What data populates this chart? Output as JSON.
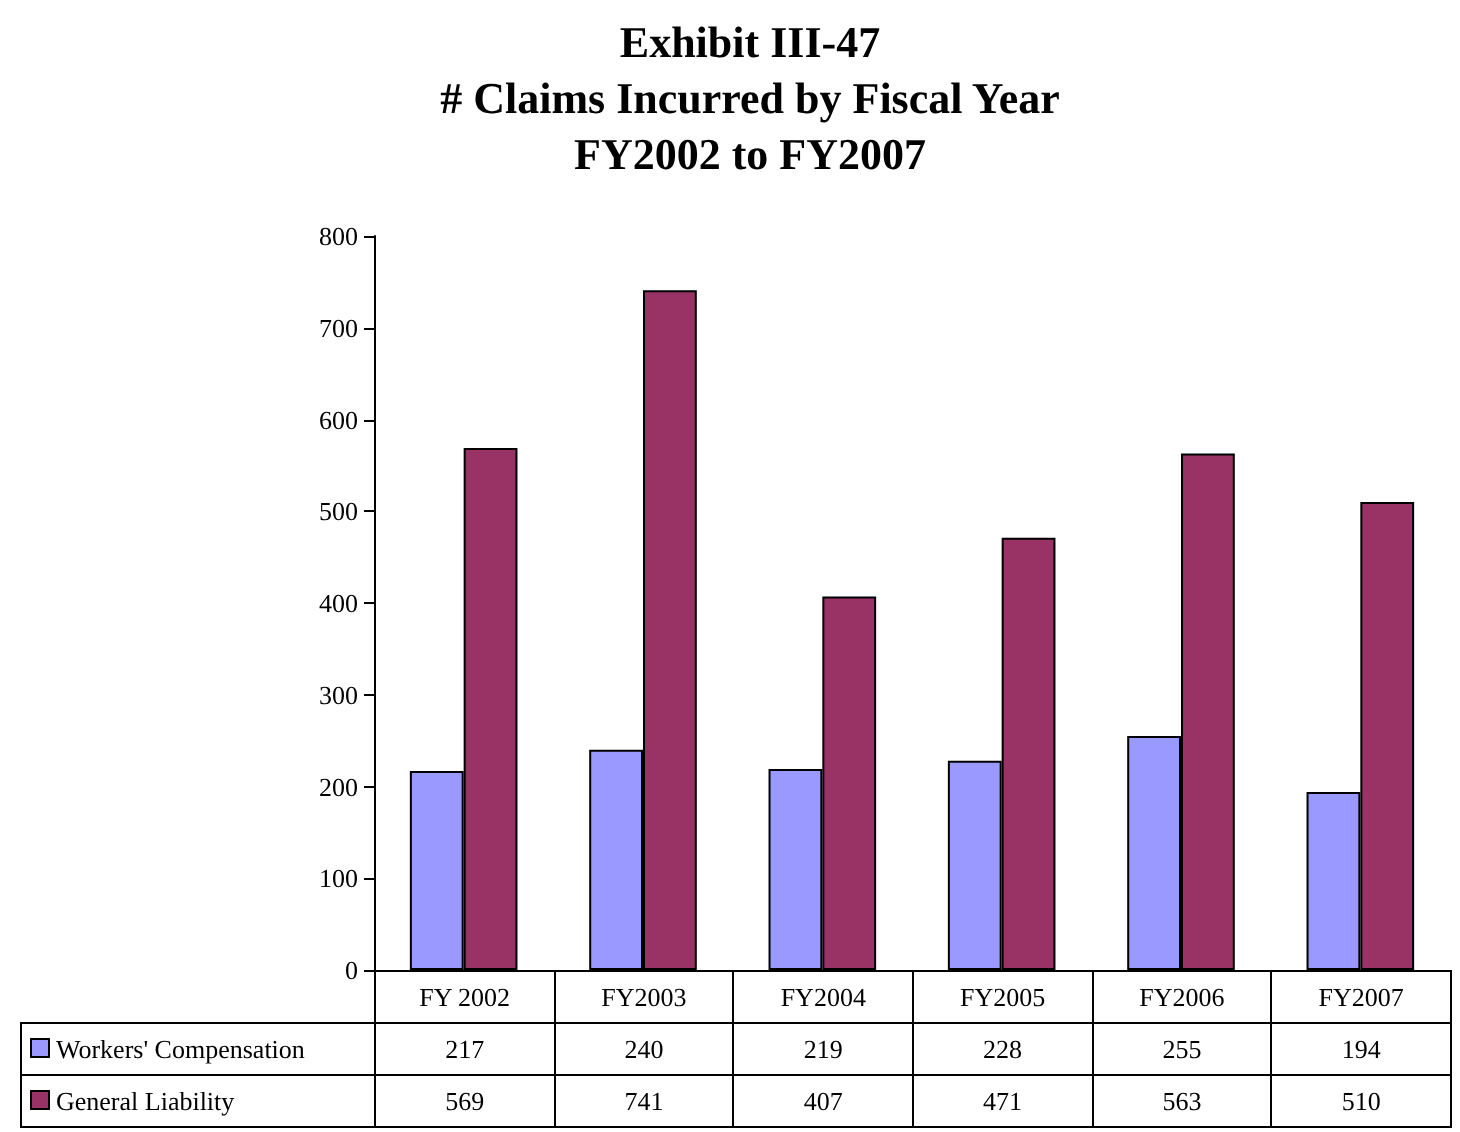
{
  "chart_data": {
    "type": "bar",
    "title": "Exhibit III-47\n# Claims Incurred by Fiscal Year\nFY2002 to FY2007",
    "categories": [
      "FY 2002",
      "FY2003",
      "FY2004",
      "FY2005",
      "FY2006",
      "FY2007"
    ],
    "series": [
      {
        "name": "Workers' Compensation",
        "color": "#9999ff",
        "values": [
          217,
          240,
          219,
          228,
          255,
          194
        ]
      },
      {
        "name": "General Liability",
        "color": "#993366",
        "values": [
          569,
          741,
          407,
          471,
          563,
          510
        ]
      }
    ],
    "ylim": [
      0,
      800
    ],
    "yticks": [
      0,
      100,
      200,
      300,
      400,
      500,
      600,
      700,
      800
    ],
    "grid": false,
    "legend": "bottom left",
    "data_labels": true
  }
}
